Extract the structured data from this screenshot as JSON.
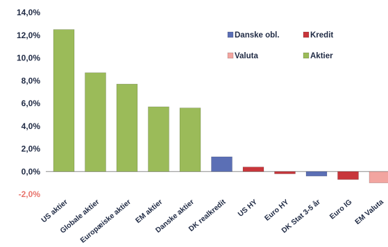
{
  "chart_data": {
    "type": "bar",
    "title": "",
    "xlabel": "",
    "ylabel": "",
    "ylim": [
      -2,
      14
    ],
    "yticks": [
      14,
      12,
      10,
      8,
      6,
      4,
      2,
      0,
      -2
    ],
    "ytick_labels": [
      "14,0%",
      "12,0%",
      "10,0%",
      "8,0%",
      "6,0%",
      "4,0%",
      "2,0%",
      "0,0%",
      "-2,0%"
    ],
    "grid": false,
    "legend_position": "top-right",
    "legend": [
      {
        "name": "Danske obl.",
        "color": "#5b6fb5"
      },
      {
        "name": "Kredit",
        "color": "#c8363b"
      },
      {
        "name": "Valuta",
        "color": "#f2a5a0"
      },
      {
        "name": "Aktier",
        "color": "#9bbb59"
      }
    ],
    "categories": [
      "US aktier",
      "Globale aktier",
      "Europæiske aktier",
      "EM aktier",
      "Danske aktier",
      "DK realkredit",
      "US HY",
      "Euro HY",
      "DK Stat 3-5 år",
      "Euro IG",
      "EM Valuta"
    ],
    "values": [
      12.5,
      8.7,
      7.7,
      5.7,
      5.6,
      1.3,
      0.4,
      -0.2,
      -0.4,
      -0.7,
      -1.0
    ],
    "groups": [
      "Aktier",
      "Aktier",
      "Aktier",
      "Aktier",
      "Aktier",
      "Danske obl.",
      "Kredit",
      "Kredit",
      "Danske obl.",
      "Kredit",
      "Valuta"
    ]
  }
}
